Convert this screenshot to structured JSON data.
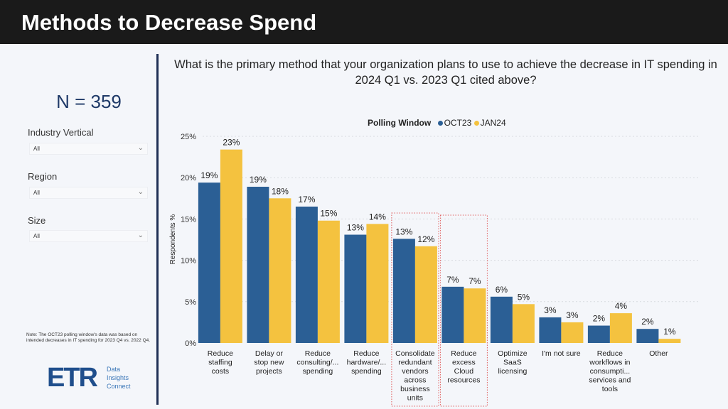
{
  "header": {
    "title": "Methods to Decrease Spend"
  },
  "sidebar": {
    "n_label": "N = 359",
    "filters": [
      {
        "label": "Industry Vertical",
        "value": "All"
      },
      {
        "label": "Region",
        "value": "All"
      },
      {
        "label": "Size",
        "value": "All"
      }
    ],
    "note": "Note: The OCT23 polling window's data was based on intended decreases in IT spending for 2023 Q4 vs. 2022 Q4.",
    "logo": {
      "mark": "ETR",
      "tagline": [
        "Data",
        "Insights",
        "Connect"
      ]
    }
  },
  "chart_data": {
    "type": "bar",
    "title": "What is the primary method that your organization plans to use to achieve the decrease in IT spending in 2024 Q1 vs. 2023 Q1 cited above?",
    "legend_title": "Polling Window",
    "legend_placement": "top",
    "ylabel": "Respondents %",
    "ylim": [
      0,
      25
    ],
    "yticks": [
      "0%",
      "5%",
      "10%",
      "15%",
      "20%",
      "25%"
    ],
    "grid": true,
    "categories": [
      [
        "Reduce",
        "staffing",
        "costs"
      ],
      [
        "Delay or",
        "stop new",
        "projects"
      ],
      [
        "Reduce",
        "consulting/...",
        "spending"
      ],
      [
        "Reduce",
        "hardware/...",
        "spending"
      ],
      [
        "Consolidate",
        "redundant",
        "vendors",
        "across",
        "business",
        "units"
      ],
      [
        "Reduce",
        "excess",
        "Cloud",
        "resources"
      ],
      [
        "Optimize",
        "SaaS",
        "licensing"
      ],
      [
        "I'm not sure"
      ],
      [
        "Reduce",
        "workflows in",
        "consumpti...",
        "services and",
        "tools"
      ],
      [
        "Other"
      ]
    ],
    "highlighted_categories": [
      4,
      5
    ],
    "series": [
      {
        "name": "OCT23",
        "color": "#2b5f95",
        "values": [
          19.4,
          18.9,
          16.5,
          13.1,
          12.6,
          6.8,
          5.6,
          3.1,
          2.1,
          1.7
        ],
        "labels": [
          "19%",
          "19%",
          "17%",
          "13%",
          "13%",
          "7%",
          "6%",
          "3%",
          "2%",
          "2%"
        ]
      },
      {
        "name": "JAN24",
        "color": "#f4c23f",
        "values": [
          23.4,
          17.5,
          14.8,
          14.4,
          11.7,
          6.6,
          4.7,
          2.5,
          3.6,
          0.5
        ],
        "labels": [
          "23%",
          "18%",
          "15%",
          "14%",
          "12%",
          "7%",
          "5%",
          "3%",
          "4%",
          "1%"
        ]
      }
    ]
  }
}
